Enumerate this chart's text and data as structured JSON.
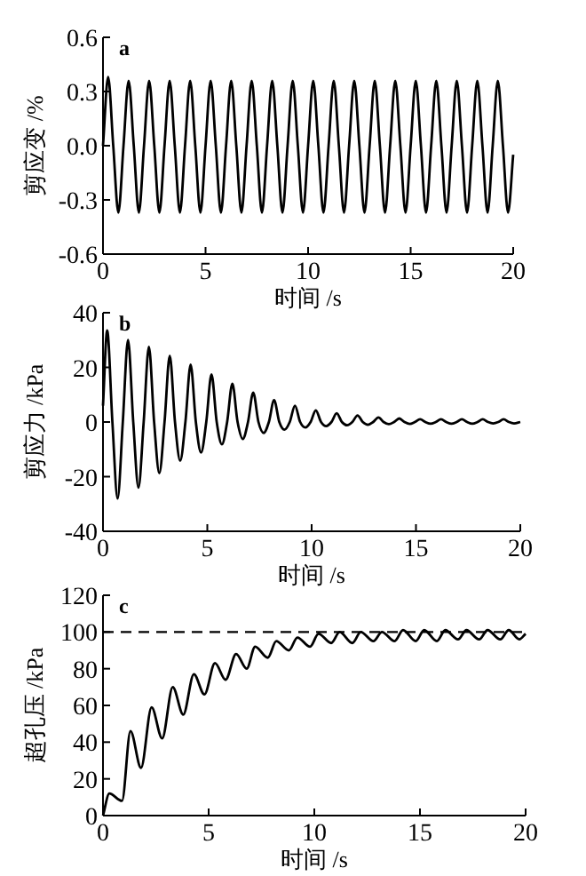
{
  "chart_data": [
    {
      "type": "line",
      "xlabel": "时间 /s",
      "ylabel": "剪应变 /%",
      "annotations": [
        "a"
      ],
      "xlim": [
        0,
        20
      ],
      "ylim": [
        -0.6,
        0.6
      ],
      "xticks": [
        0,
        5,
        10,
        15,
        20
      ],
      "yticks": [
        -0.6,
        -0.3,
        {
          "value": 0,
          "label": "0.0"
        },
        0.3,
        0.6
      ],
      "x": [
        0,
        0.25,
        0.5,
        0.75,
        1,
        1.25,
        1.5,
        1.75,
        2,
        2.25,
        2.5,
        2.75,
        3,
        3.25,
        3.5,
        3.75,
        4,
        4.25,
        4.5,
        4.75,
        5,
        5.25,
        5.5,
        5.75,
        6,
        6.25,
        6.5,
        6.75,
        7,
        7.25,
        7.5,
        7.75,
        8,
        8.25,
        8.5,
        8.75,
        9,
        9.25,
        9.5,
        9.75,
        10,
        10.25,
        10.5,
        10.75,
        11,
        11.25,
        11.5,
        11.75,
        12,
        12.25,
        12.5,
        12.75,
        13,
        13.25,
        13.5,
        13.75,
        14,
        14.25,
        14.5,
        14.75,
        15,
        15.25,
        15.5,
        15.75,
        16,
        16.25,
        16.5,
        16.75,
        17,
        17.25,
        17.5,
        17.75,
        18,
        18.25,
        18.5,
        18.75,
        19,
        19.25,
        19.5,
        19.75,
        20
      ],
      "series": [
        {
          "color": "#000000",
          "values": [
            0,
            0.38,
            0,
            -0.37,
            0,
            0.36,
            0,
            -0.37,
            0,
            0.36,
            0,
            -0.37,
            0,
            0.36,
            0,
            -0.37,
            0,
            0.36,
            0,
            -0.37,
            0,
            0.36,
            0,
            -0.37,
            0,
            0.36,
            0,
            -0.37,
            0,
            0.36,
            0,
            -0.37,
            0,
            0.36,
            0,
            -0.37,
            0,
            0.36,
            0,
            -0.37,
            0,
            0.36,
            0,
            -0.37,
            0,
            0.36,
            0,
            -0.37,
            0,
            0.36,
            0,
            -0.37,
            0,
            0.36,
            0,
            -0.37,
            0,
            0.36,
            0,
            -0.37,
            0,
            0.36,
            0,
            -0.37,
            0,
            0.36,
            0,
            -0.37,
            0,
            0.36,
            0,
            -0.37,
            0,
            0.36,
            0,
            -0.37,
            0,
            0.36,
            0,
            -0.37,
            -0.05
          ]
        }
      ]
    },
    {
      "type": "line",
      "xlabel": "时间 /s",
      "ylabel": "剪应力 /kPa",
      "annotations": [
        "b"
      ],
      "xlim": [
        0,
        20
      ],
      "ylim": [
        -40,
        40
      ],
      "xticks": [
        0,
        5,
        10,
        15,
        20
      ],
      "yticks": [
        -40,
        -20,
        0,
        20,
        40
      ],
      "x": [
        0,
        0.2,
        0.45,
        0.7,
        0.95,
        1.2,
        1.45,
        1.7,
        1.95,
        2.2,
        2.45,
        2.7,
        2.95,
        3.2,
        3.45,
        3.7,
        3.95,
        4.2,
        4.45,
        4.7,
        4.95,
        5.2,
        5.45,
        5.7,
        5.95,
        6.2,
        6.45,
        6.7,
        6.95,
        7.2,
        7.45,
        7.7,
        7.95,
        8.2,
        8.45,
        8.7,
        8.95,
        9.2,
        9.45,
        9.7,
        9.95,
        10.2,
        10.45,
        10.7,
        10.95,
        11.2,
        11.45,
        11.7,
        11.95,
        12.2,
        12.45,
        12.7,
        12.95,
        13.2,
        13.45,
        13.7,
        13.95,
        14.2,
        14.45,
        14.7,
        14.95,
        15.2,
        15.45,
        15.7,
        15.95,
        16.2,
        16.45,
        16.7,
        16.95,
        17.2,
        17.45,
        17.7,
        17.95,
        18.2,
        18.45,
        18.7,
        18.95,
        19.2,
        19.45,
        19.7,
        20
      ],
      "series": [
        {
          "color": "#000000",
          "values": [
            6,
            33.5,
            0,
            -28,
            0,
            30,
            0,
            -24,
            0,
            27.5,
            0,
            -18.7,
            0,
            24.3,
            0,
            -14.2,
            0,
            21,
            0,
            -11.2,
            0,
            17.4,
            0,
            -8.2,
            0,
            14,
            0,
            -6.2,
            0,
            10.8,
            0,
            -4,
            0,
            8,
            0,
            -2.8,
            0,
            6,
            0,
            -2,
            0,
            4.3,
            0,
            -1.5,
            0,
            3.2,
            0,
            -1.2,
            0,
            2.4,
            0,
            -1,
            0,
            1.7,
            0,
            -0.8,
            0,
            1.3,
            0,
            -0.7,
            0,
            1,
            0,
            -0.6,
            0,
            1,
            0,
            -0.6,
            0,
            1,
            0,
            -0.6,
            0,
            1,
            0,
            -0.5,
            0,
            1,
            0,
            -0.5,
            0
          ]
        }
      ]
    },
    {
      "type": "line",
      "xlabel": "时间 /s",
      "ylabel": "超孔压 /kPa",
      "annotations": [
        "c"
      ],
      "xlim": [
        0,
        20
      ],
      "ylim": [
        0,
        120
      ],
      "xticks": [
        0,
        5,
        10,
        15,
        20
      ],
      "yticks": [
        0,
        20,
        40,
        60,
        80,
        100,
        120
      ],
      "ref_lines": [
        {
          "axis": "y",
          "value": 100,
          "color": "#000000",
          "line_style": "dashed"
        }
      ],
      "x": [
        0,
        0.3,
        0.9,
        1.3,
        1.8,
        2.3,
        2.8,
        3.3,
        3.8,
        4.3,
        4.8,
        5.3,
        5.8,
        6.3,
        6.8,
        7.2,
        7.8,
        8.2,
        8.8,
        9.2,
        9.8,
        10.2,
        10.8,
        11.2,
        11.8,
        12.2,
        12.8,
        13.2,
        13.8,
        14.2,
        14.8,
        15.2,
        15.8,
        16.2,
        16.8,
        17.2,
        17.8,
        18.2,
        18.8,
        19.2,
        19.7,
        20
      ],
      "series": [
        {
          "color": "#000000",
          "values": [
            0,
            12,
            8,
            46,
            26,
            59,
            42,
            70,
            55,
            77,
            66,
            83,
            74,
            88,
            80,
            92,
            86,
            95,
            90,
            97,
            92,
            99,
            94,
            100,
            94,
            100,
            95,
            100,
            95,
            101,
            95,
            101,
            95,
            101,
            96,
            101,
            96,
            101,
            96,
            101,
            96,
            99
          ]
        }
      ]
    }
  ]
}
